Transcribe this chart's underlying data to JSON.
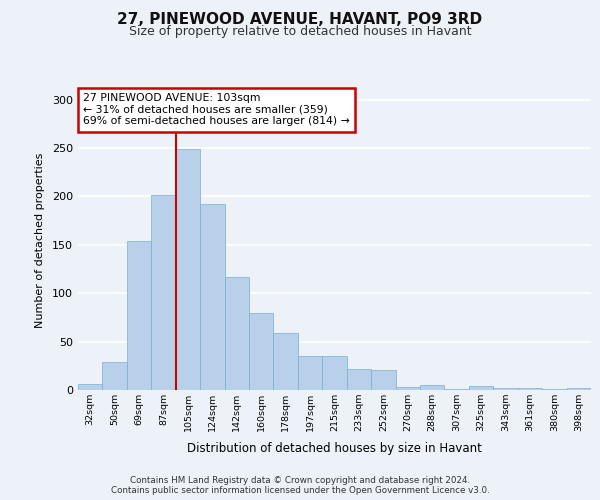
{
  "title1": "27, PINEWOOD AVENUE, HAVANT, PO9 3RD",
  "title2": "Size of property relative to detached houses in Havant",
  "xlabel": "Distribution of detached houses by size in Havant",
  "ylabel": "Number of detached properties",
  "bar_labels": [
    "32sqm",
    "50sqm",
    "69sqm",
    "87sqm",
    "105sqm",
    "124sqm",
    "142sqm",
    "160sqm",
    "178sqm",
    "197sqm",
    "215sqm",
    "233sqm",
    "252sqm",
    "270sqm",
    "288sqm",
    "307sqm",
    "325sqm",
    "343sqm",
    "361sqm",
    "380sqm",
    "398sqm"
  ],
  "bar_values": [
    6,
    29,
    154,
    201,
    249,
    192,
    117,
    80,
    59,
    35,
    35,
    22,
    21,
    3,
    5,
    1,
    4,
    2,
    2,
    1,
    2
  ],
  "bar_color": "#b8d0ea",
  "bar_edgecolor": "#7aafd4",
  "annotation_text": "27 PINEWOOD AVENUE: 103sqm\n← 31% of detached houses are smaller (359)\n69% of semi-detached houses are larger (814) →",
  "vline_color": "#cc0000",
  "vline_x_idx": 3.5,
  "ylim": [
    0,
    310
  ],
  "yticks": [
    0,
    50,
    100,
    150,
    200,
    250,
    300
  ],
  "footer_line1": "Contains HM Land Registry data © Crown copyright and database right 2024.",
  "footer_line2": "Contains public sector information licensed under the Open Government Licence v3.0.",
  "bg_color": "#edf2f9",
  "grid_color": "#ffffff"
}
